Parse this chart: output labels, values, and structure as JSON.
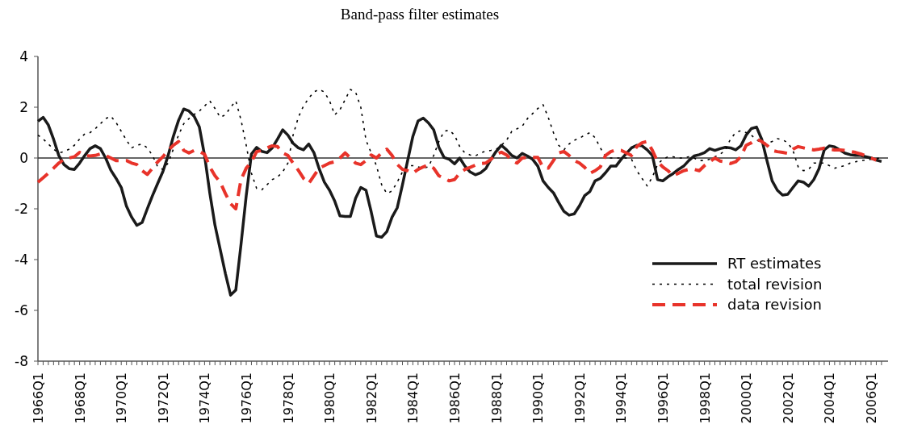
{
  "chart_data": {
    "type": "line",
    "title": "Band-pass filter estimates",
    "categories": [
      "1966Q1",
      null,
      null,
      null,
      null,
      null,
      null,
      null,
      "1968Q1",
      null,
      null,
      null,
      null,
      null,
      null,
      null,
      "1970Q1",
      null,
      null,
      null,
      null,
      null,
      null,
      null,
      "1972Q1",
      null,
      null,
      null,
      null,
      null,
      null,
      null,
      "1974Q1",
      null,
      null,
      null,
      null,
      null,
      null,
      null,
      "1976Q1",
      null,
      null,
      null,
      null,
      null,
      null,
      null,
      "1978Q1",
      null,
      null,
      null,
      null,
      null,
      null,
      null,
      "1980Q1",
      null,
      null,
      null,
      null,
      null,
      null,
      null,
      "1982Q1",
      null,
      null,
      null,
      null,
      null,
      null,
      null,
      "1984Q1",
      null,
      null,
      null,
      null,
      null,
      null,
      null,
      "1986Q1",
      null,
      null,
      null,
      null,
      null,
      null,
      null,
      "1988Q1",
      null,
      null,
      null,
      null,
      null,
      null,
      null,
      "1990Q1",
      null,
      null,
      null,
      null,
      null,
      null,
      null,
      "1992Q1",
      null,
      null,
      null,
      null,
      null,
      null,
      null,
      "1994Q1",
      null,
      null,
      null,
      null,
      null,
      null,
      null,
      "1996Q1",
      null,
      null,
      null,
      null,
      null,
      null,
      null,
      "1998Q1",
      null,
      null,
      null,
      null,
      null,
      null,
      null,
      "2000Q1",
      null,
      null,
      null,
      null,
      null,
      null,
      null,
      "2002Q1",
      null,
      null,
      null,
      null,
      null,
      null,
      null,
      "2004Q1",
      null,
      null,
      null,
      null,
      null,
      null,
      null,
      "2006Q1",
      null,
      null
    ],
    "series": [
      {
        "name": "RT estimates",
        "color": "#1a1a1a",
        "line_style": "solid",
        "values": [
          1.45,
          1.6,
          1.3,
          0.74,
          0.1,
          -0.26,
          -0.42,
          -0.45,
          -0.2,
          0.1,
          0.37,
          0.48,
          0.37,
          0,
          -0.48,
          -0.8,
          -1.16,
          -1.9,
          -2.33,
          -2.65,
          -2.54,
          -2,
          -1.48,
          -1,
          -0.53,
          0.1,
          0.85,
          1.48,
          1.93,
          1.85,
          1.64,
          1.22,
          0.1,
          -1.37,
          -2.65,
          -3.6,
          -4.55,
          -5.4,
          -5.2,
          -3.4,
          -1.48,
          0.16,
          0.42,
          0.26,
          0.21,
          0.4,
          0.74,
          1.11,
          0.9,
          0.58,
          0.4,
          0.32,
          0.55,
          0.21,
          -0.42,
          -0.95,
          -1.27,
          -1.7,
          -2.28,
          -2.3,
          -2.3,
          -1.59,
          -1.16,
          -1.27,
          -2.12,
          -3.07,
          -3.12,
          -2.9,
          -2.33,
          -1.96,
          -1.06,
          -0.1,
          0.85,
          1.46,
          1.57,
          1.38,
          1.11,
          0.42,
          0.02,
          -0.05,
          -0.23,
          0,
          -0.32,
          -0.55,
          -0.66,
          -0.58,
          -0.42,
          -0.05,
          0.26,
          0.5,
          0.32,
          0.1,
          0,
          0.18,
          0.08,
          -0.05,
          -0.32,
          -0.9,
          -1.16,
          -1.37,
          -1.75,
          -2.1,
          -2.25,
          -2.2,
          -1.88,
          -1.48,
          -1.32,
          -0.9,
          -0.8,
          -0.58,
          -0.32,
          -0.32,
          -0.05,
          0.18,
          0.4,
          0.5,
          0.48,
          0.32,
          0.1,
          -0.85,
          -0.9,
          -0.74,
          -0.61,
          -0.45,
          -0.32,
          -0.1,
          0.08,
          0.13,
          0.21,
          0.37,
          0.3,
          0.37,
          0.42,
          0.4,
          0.32,
          0.48,
          0.9,
          1.16,
          1.22,
          0.74,
          -0.1,
          -0.9,
          -1.27,
          -1.46,
          -1.43,
          -1.16,
          -0.9,
          -0.95,
          -1.11,
          -0.85,
          -0.42,
          0.32,
          0.48,
          0.44,
          0.32,
          0.19,
          0.13,
          0.1,
          0.1,
          0.05,
          0,
          -0.08,
          -0.14
        ]
      },
      {
        "name": "total revision",
        "color": "#000000",
        "line_style": "dotted",
        "values": [
          0.9,
          0.75,
          0.55,
          0.35,
          0.2,
          0.25,
          0.35,
          0.5,
          0.75,
          0.95,
          1.0,
          1.15,
          1.35,
          1.55,
          1.65,
          1.4,
          1.05,
          0.7,
          0.4,
          0.5,
          0.55,
          0.4,
          0.1,
          -0.35,
          -0.45,
          -0.2,
          0.35,
          0.9,
          1.35,
          1.55,
          1.72,
          1.85,
          2.05,
          2.25,
          1.95,
          1.6,
          1.7,
          2.0,
          2.25,
          1.5,
          0.5,
          -0.6,
          -1.2,
          -1.25,
          -1.05,
          -0.85,
          -0.75,
          -0.55,
          -0.2,
          0.9,
          1.6,
          2.05,
          2.35,
          2.6,
          2.7,
          2.6,
          2.25,
          1.7,
          1.9,
          2.3,
          2.7,
          2.6,
          2.0,
          0.7,
          0.2,
          -0.3,
          -1.05,
          -1.4,
          -1.3,
          -0.95,
          -0.55,
          -0.3,
          -0.3,
          -0.35,
          -0.4,
          -0.35,
          0.1,
          0.65,
          1.05,
          1.1,
          0.9,
          0.45,
          0.2,
          0.12,
          0.08,
          0.2,
          0.27,
          0.3,
          0.34,
          0.5,
          0.7,
          1.05,
          1.15,
          1.25,
          1.55,
          1.75,
          1.95,
          2.1,
          1.6,
          1.0,
          0.5,
          0.32,
          0.55,
          0.7,
          0.78,
          0.9,
          1.0,
          0.8,
          0.4,
          0.05,
          0,
          0,
          0,
          0,
          -0.05,
          -0.5,
          -0.8,
          -1.1,
          -0.75,
          -0.25,
          -0.05,
          0.05,
          0.05,
          0,
          0,
          0.05,
          0,
          -0.1,
          -0.1,
          -0.05,
          0.05,
          0.15,
          0.3,
          0.75,
          1.0,
          1.08,
          1.0,
          0.9,
          0.72,
          0.6,
          0.58,
          0.65,
          0.76,
          0.72,
          0.6,
          0.3,
          -0.35,
          -0.5,
          -0.45,
          -0.2,
          -0.2,
          -0.2,
          -0.3,
          -0.4,
          -0.35,
          -0.3,
          -0.2,
          -0.15,
          -0.1,
          -0.08,
          -0.05,
          -0.02,
          0
        ]
      },
      {
        "name": "data revision",
        "color": "#e8332a",
        "line_style": "dashed",
        "values": [
          -0.95,
          -0.78,
          -0.6,
          -0.4,
          -0.2,
          -0.05,
          0,
          0.05,
          0.22,
          0.1,
          0.08,
          0.1,
          0.16,
          0.1,
          0,
          -0.1,
          -0.1,
          -0.1,
          -0.2,
          -0.26,
          -0.5,
          -0.65,
          -0.4,
          -0.15,
          0.05,
          0.3,
          0.5,
          0.65,
          0.3,
          0.2,
          0.3,
          0.25,
          0.15,
          -0.35,
          -0.7,
          -0.95,
          -1.4,
          -1.8,
          -2,
          -0.85,
          -0.4,
          -0.15,
          0.25,
          0.3,
          0.4,
          0.48,
          0.45,
          0.2,
          0.1,
          -0.2,
          -0.48,
          -0.8,
          -1,
          -0.7,
          -0.4,
          -0.3,
          -0.2,
          -0.15,
          0,
          0.2,
          0,
          -0.2,
          -0.26,
          -0.1,
          0.12,
          0,
          0.2,
          0.35,
          0.1,
          -0.25,
          -0.45,
          -0.5,
          -0.6,
          -0.45,
          -0.35,
          -0.27,
          -0.4,
          -0.7,
          -0.8,
          -0.9,
          -0.85,
          -0.6,
          -0.45,
          -0.37,
          -0.28,
          -0.22,
          -0.2,
          -0.05,
          0.15,
          0.23,
          0.12,
          -0.1,
          -0.2,
          0,
          0.02,
          0.02,
          0.02,
          -0.37,
          -0.4,
          -0.1,
          0.2,
          0.26,
          0.1,
          -0.1,
          -0.2,
          -0.37,
          -0.6,
          -0.5,
          -0.35,
          0.1,
          0.25,
          0.32,
          0.3,
          0.2,
          0.1,
          0.45,
          0.6,
          0.65,
          0.3,
          -0.15,
          -0.35,
          -0.5,
          -0.7,
          -0.6,
          -0.5,
          -0.45,
          -0.45,
          -0.5,
          -0.3,
          -0.15,
          0,
          -0.12,
          -0.15,
          -0.22,
          -0.15,
          0.05,
          0.5,
          0.6,
          0.75,
          0.65,
          0.5,
          0.3,
          0.25,
          0.22,
          0.18,
          0.35,
          0.45,
          0.4,
          0.35,
          0.32,
          0.35,
          0.39,
          0.35,
          0.32,
          0.32,
          0.3,
          0.26,
          0.22,
          0.16,
          0.08,
          0,
          -0.08,
          null
        ]
      }
    ],
    "ylim": [
      -8,
      4
    ],
    "yticks": [
      -8,
      -6,
      -4,
      -2,
      0,
      2,
      4
    ],
    "grid": false,
    "legend": "right",
    "marker": "none",
    "ref_lines": [
      {
        "axis": "y",
        "value": 0,
        "color": "#333333",
        "line_style": "solid"
      }
    ]
  }
}
